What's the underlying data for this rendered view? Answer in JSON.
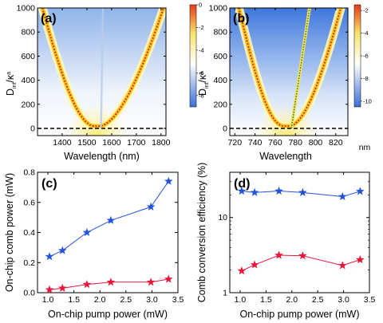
{
  "chart_data": [
    {
      "panel": "(a)",
      "type": "heatmap",
      "xlabel": "Wavelength (nm)",
      "ylabel_main": "D",
      "ylabel_sub": "int",
      "ylabel_rest": "/κ",
      "ylabel_sup": "a",
      "xlim": [
        1300,
        1820
      ],
      "ylim": [
        -60,
        1000
      ],
      "xticks": [
        1400,
        1500,
        1600,
        1700,
        1800
      ],
      "yticks": [
        0,
        200,
        400,
        600,
        800,
        1000
      ],
      "colorbar": {
        "ticks": [
          0,
          -2,
          -4,
          -6,
          -8
        ],
        "range": [
          -9,
          0
        ],
        "colors": [
          "#3b6fd6",
          "#ffffff",
          "#f8e36a",
          "#e63a1a"
        ]
      },
      "dispersion_curve": {
        "vertex_x": 1540,
        "vertex_y": 20,
        "edges": [
          [
            1320,
            1000
          ],
          [
            1810,
            1000
          ]
        ]
      },
      "secondary_line": {
        "x": [
          1557,
          1565
        ],
        "y": [
          0,
          1000
        ],
        "style": "faint"
      },
      "zero_line": 0
    },
    {
      "panel": "(b)",
      "type": "heatmap",
      "xlabel": "Wavelength",
      "xunit": "nm",
      "ylabel_main": "D",
      "ylabel_sub": "int",
      "ylabel_rest": "/κ",
      "ylabel_sup": "a",
      "xlim": [
        715,
        832
      ],
      "ylim": [
        -60,
        1000
      ],
      "xticks": [
        720,
        740,
        760,
        780,
        800,
        820
      ],
      "yticks": [
        0,
        200,
        400,
        600,
        800,
        1000
      ],
      "colorbar": {
        "ticks": [
          -2,
          -4,
          -6,
          -8,
          -10
        ],
        "range": [
          -10.5,
          -1.5
        ],
        "colors": [
          "#3b6fd6",
          "#ffffff",
          "#f8e36a",
          "#e63a1a"
        ]
      },
      "dispersion_curve": {
        "vertex_x": 771,
        "vertex_y": 20,
        "edges": [
          [
            724,
            1000
          ],
          [
            825,
            1000
          ]
        ]
      },
      "secondary_line": {
        "x": [
          776,
          794
        ],
        "y": [
          0,
          1000
        ],
        "style": "green-dotted"
      },
      "zero_line": 0
    },
    {
      "panel": "(c)",
      "type": "line",
      "xlabel": "On-chip pump power (mW)",
      "ylabel": "On-chip comb power (mW)",
      "xlim": [
        0.8,
        3.5
      ],
      "ylim": [
        0,
        0.8
      ],
      "xticks": [
        1.0,
        1.5,
        2.0,
        2.5,
        3.0,
        3.5
      ],
      "xtick_labels": [
        "1.0",
        "1.5",
        "2.0",
        "2.5",
        "3.0",
        "3.5"
      ],
      "yticks": [
        0,
        0.2,
        0.4,
        0.6,
        0.8
      ],
      "ytick_labels": [
        "0.0",
        "0.2",
        "0.4",
        "0.6",
        "0.8"
      ],
      "series": [
        {
          "color": "#2553d6",
          "x": [
            1.03,
            1.28,
            1.75,
            2.21,
            2.98,
            3.32
          ],
          "values": [
            0.24,
            0.28,
            0.4,
            0.48,
            0.57,
            0.74
          ]
        },
        {
          "color": "#e8163a",
          "x": [
            1.03,
            1.28,
            1.75,
            2.21,
            2.98,
            3.32
          ],
          "values": [
            0.02,
            0.03,
            0.055,
            0.07,
            0.07,
            0.09
          ]
        }
      ]
    },
    {
      "panel": "(d)",
      "type": "line",
      "xlabel": "On-chip pump power (mW)",
      "ylabel": "Comb conversion efficiency (%)",
      "xlim": [
        0.8,
        3.5
      ],
      "ylim": [
        1,
        40
      ],
      "yscale": "log",
      "xticks": [
        1.0,
        1.5,
        2.0,
        2.5,
        3.0,
        3.5
      ],
      "xtick_labels": [
        "1.0",
        "1.5",
        "2.0",
        "2.5",
        "3.0",
        "3.5"
      ],
      "yticks": [
        1,
        10
      ],
      "ytick_labels": [
        "1",
        "10"
      ],
      "series": [
        {
          "color": "#2553d6",
          "x": [
            1.03,
            1.28,
            1.75,
            2.21,
            2.98,
            3.32
          ],
          "values": [
            22.5,
            21.5,
            22.5,
            21.5,
            19.0,
            22.3
          ]
        },
        {
          "color": "#e8163a",
          "x": [
            1.03,
            1.28,
            1.75,
            2.21,
            2.98,
            3.32
          ],
          "values": [
            1.95,
            2.35,
            3.15,
            3.1,
            2.3,
            2.75
          ]
        }
      ]
    }
  ]
}
